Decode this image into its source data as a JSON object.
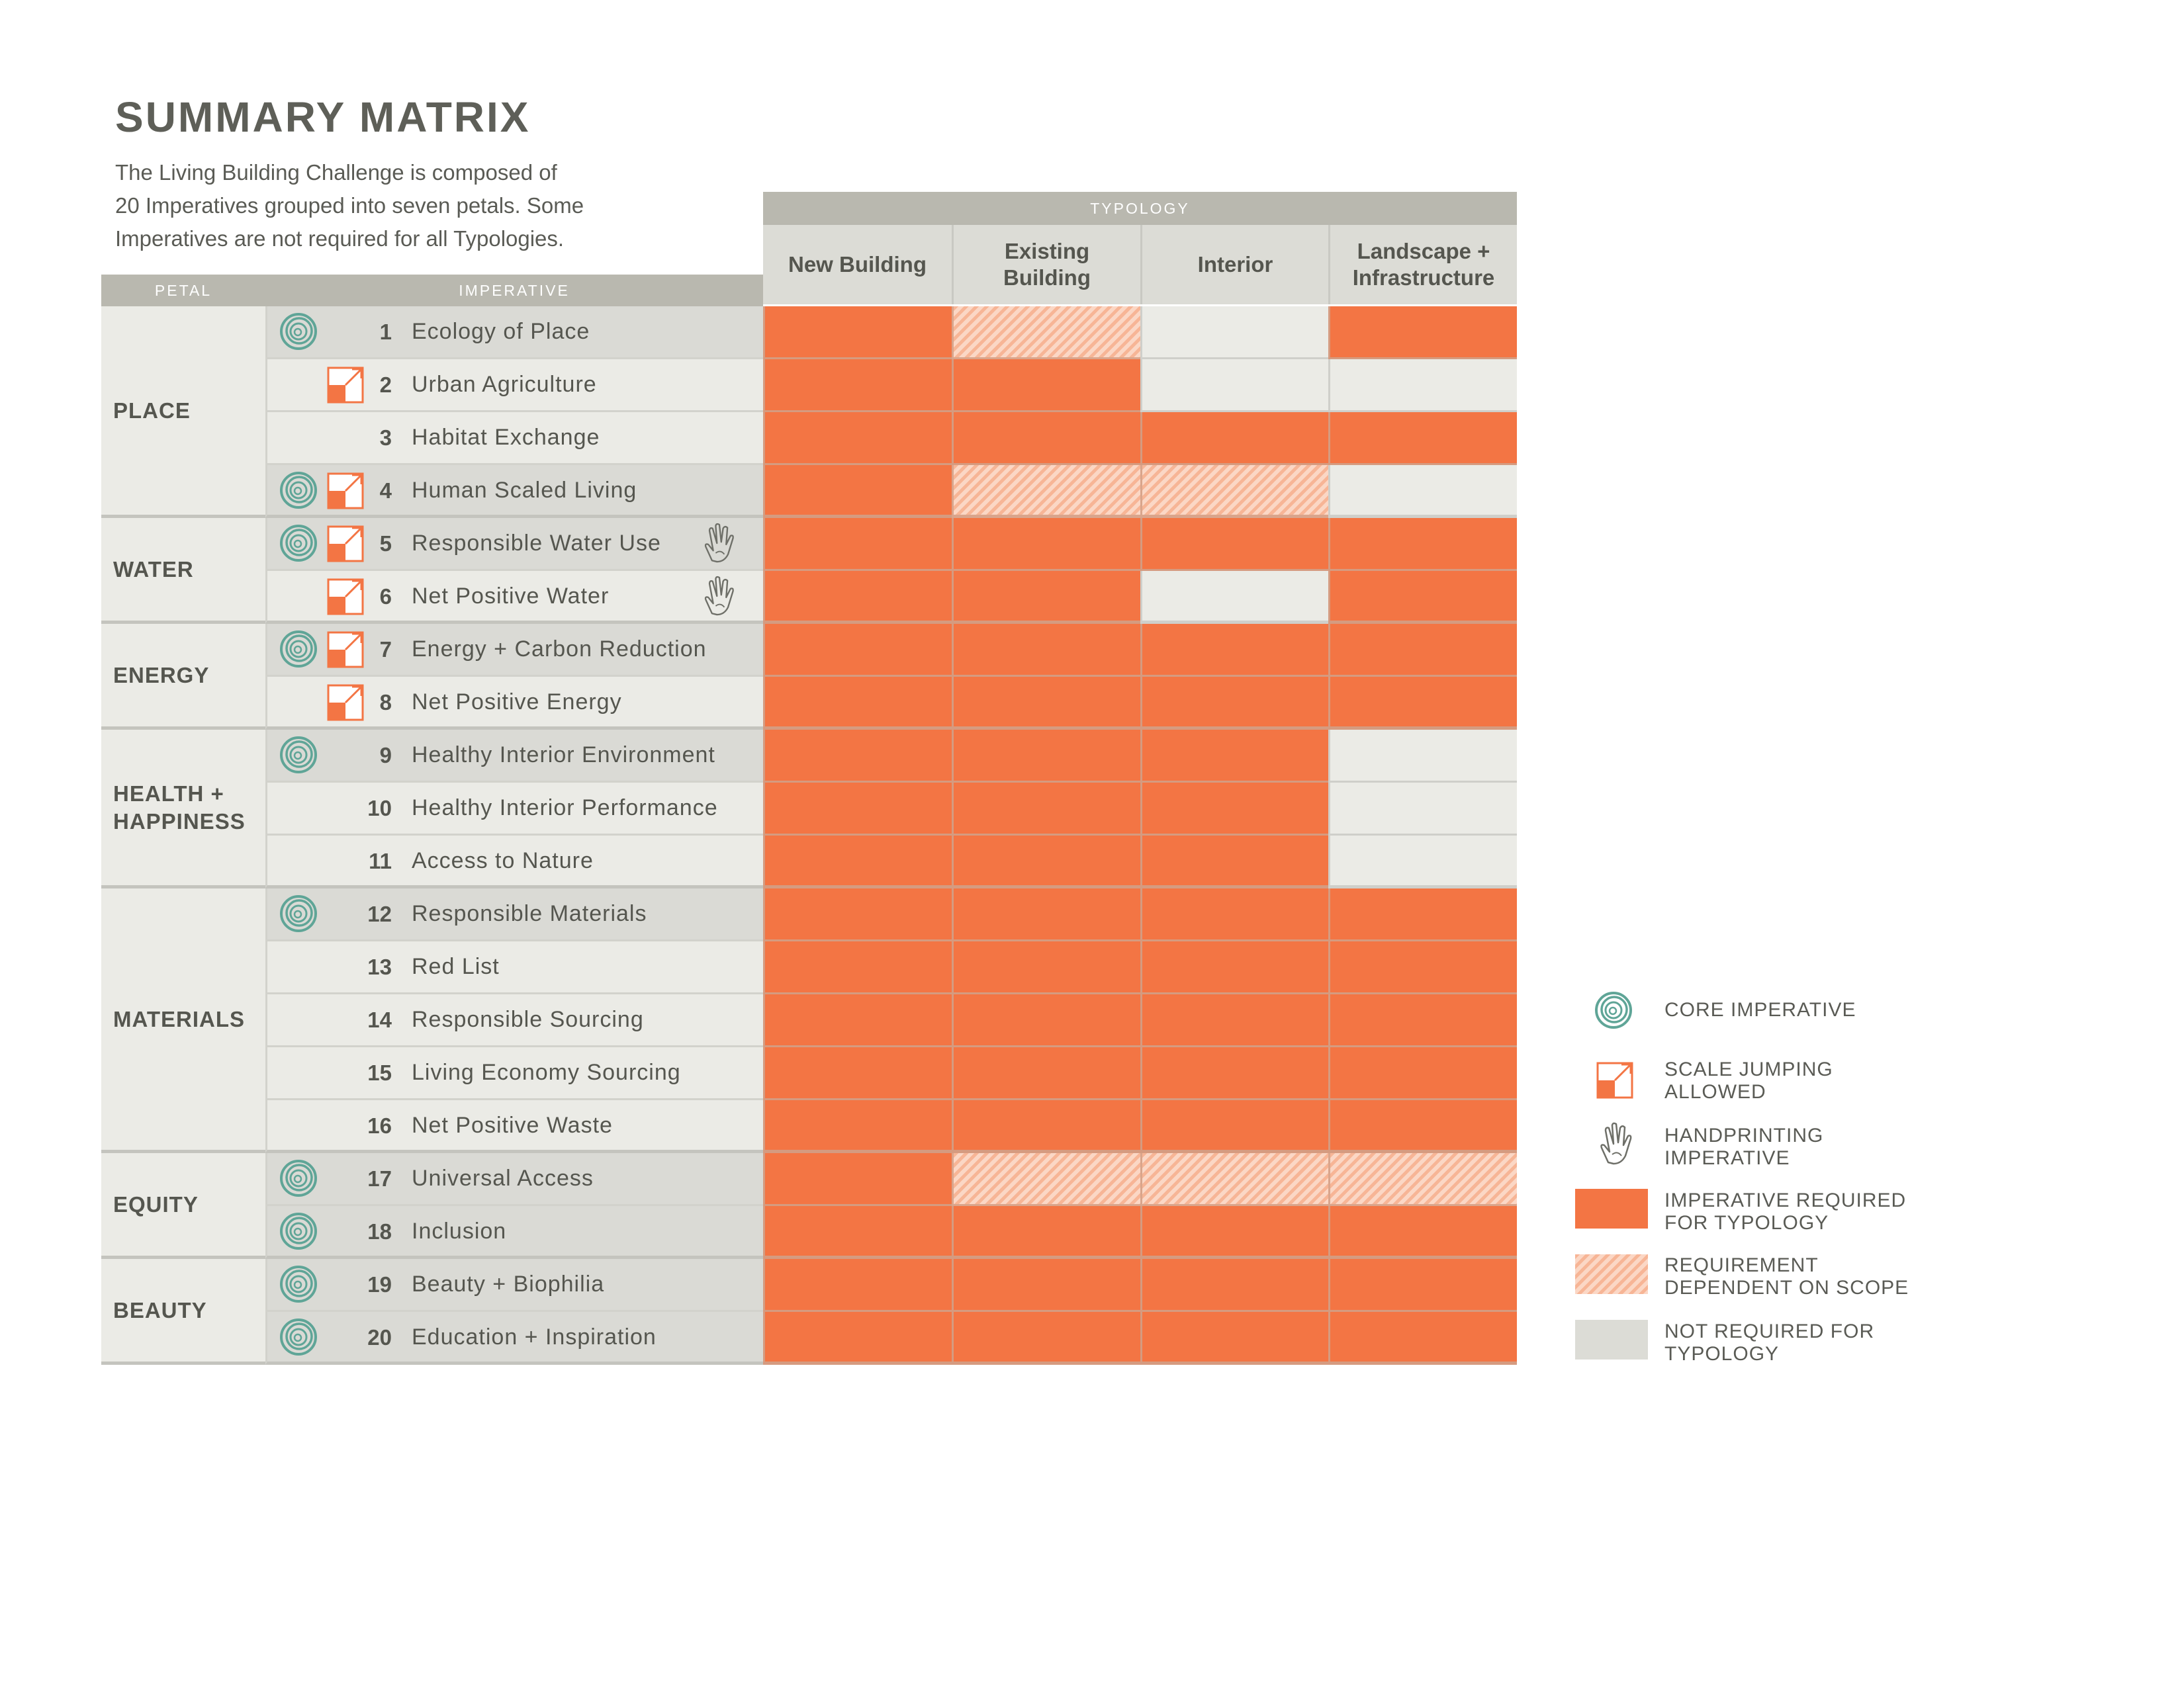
{
  "title": "SUMMARY MATRIX",
  "intro_lines": [
    "The Living Building Challenge is composed of",
    "20 Imperatives grouped into seven petals. Some",
    "Imperatives are not required for all Typologies."
  ],
  "headers": {
    "petal": "PETAL",
    "imperative": "IMPERATIVE",
    "typology": "TYPOLOGY",
    "typologies": [
      {
        "line1": "New Building",
        "line2": ""
      },
      {
        "line1": "Existing",
        "line2": "Building"
      },
      {
        "line1": "Interior",
        "line2": ""
      },
      {
        "line1": "Landscape +",
        "line2": "Infrastructure"
      }
    ]
  },
  "petals": [
    {
      "line1": "PLACE",
      "line2": ""
    },
    {
      "line1": "WATER",
      "line2": ""
    },
    {
      "line1": "ENERGY",
      "line2": ""
    },
    {
      "line1": "HEALTH +",
      "line2": "HAPPINESS"
    },
    {
      "line1": "MATERIALS",
      "line2": ""
    },
    {
      "line1": "EQUITY",
      "line2": ""
    },
    {
      "line1": "BEAUTY",
      "line2": ""
    }
  ],
  "imperatives": [
    {
      "num": "1",
      "name": "Ecology of Place",
      "core": true,
      "scale": false,
      "hand": false,
      "status": [
        "required",
        "scope",
        "none",
        "required"
      ]
    },
    {
      "num": "2",
      "name": "Urban Agriculture",
      "core": false,
      "scale": true,
      "hand": false,
      "status": [
        "required",
        "required",
        "none",
        "none"
      ]
    },
    {
      "num": "3",
      "name": "Habitat Exchange",
      "core": false,
      "scale": false,
      "hand": false,
      "status": [
        "required",
        "required",
        "required",
        "required"
      ]
    },
    {
      "num": "4",
      "name": "Human Scaled Living",
      "core": true,
      "scale": true,
      "hand": false,
      "status": [
        "required",
        "scope",
        "scope",
        "none"
      ]
    },
    {
      "num": "5",
      "name": "Responsible Water Use",
      "core": true,
      "scale": true,
      "hand": true,
      "status": [
        "required",
        "required",
        "required",
        "required"
      ]
    },
    {
      "num": "6",
      "name": "Net Positive Water",
      "core": false,
      "scale": true,
      "hand": true,
      "status": [
        "required",
        "required",
        "none",
        "required"
      ]
    },
    {
      "num": "7",
      "name": "Energy + Carbon Reduction",
      "core": true,
      "scale": true,
      "hand": false,
      "status": [
        "required",
        "required",
        "required",
        "required"
      ]
    },
    {
      "num": "8",
      "name": "Net Positive Energy",
      "core": false,
      "scale": true,
      "hand": false,
      "status": [
        "required",
        "required",
        "required",
        "required"
      ]
    },
    {
      "num": "9",
      "name": "Healthy Interior Environment",
      "core": true,
      "scale": false,
      "hand": false,
      "status": [
        "required",
        "required",
        "required",
        "none"
      ]
    },
    {
      "num": "10",
      "name": "Healthy Interior Performance",
      "core": false,
      "scale": false,
      "hand": false,
      "status": [
        "required",
        "required",
        "required",
        "none"
      ]
    },
    {
      "num": "11",
      "name": "Access to Nature",
      "core": false,
      "scale": false,
      "hand": false,
      "status": [
        "required",
        "required",
        "required",
        "none"
      ]
    },
    {
      "num": "12",
      "name": "Responsible Materials",
      "core": true,
      "scale": false,
      "hand": false,
      "status": [
        "required",
        "required",
        "required",
        "required"
      ]
    },
    {
      "num": "13",
      "name": "Red List",
      "core": false,
      "scale": false,
      "hand": false,
      "status": [
        "required",
        "required",
        "required",
        "required"
      ]
    },
    {
      "num": "14",
      "name": "Responsible Sourcing",
      "core": false,
      "scale": false,
      "hand": false,
      "status": [
        "required",
        "required",
        "required",
        "required"
      ]
    },
    {
      "num": "15",
      "name": "Living Economy Sourcing",
      "core": false,
      "scale": false,
      "hand": false,
      "status": [
        "required",
        "required",
        "required",
        "required"
      ]
    },
    {
      "num": "16",
      "name": "Net Positive Waste",
      "core": false,
      "scale": false,
      "hand": false,
      "status": [
        "required",
        "required",
        "required",
        "required"
      ]
    },
    {
      "num": "17",
      "name": "Universal Access",
      "core": true,
      "scale": false,
      "hand": false,
      "status": [
        "required",
        "scope",
        "scope",
        "scope"
      ]
    },
    {
      "num": "18",
      "name": "Inclusion",
      "core": true,
      "scale": false,
      "hand": false,
      "status": [
        "required",
        "required",
        "required",
        "required"
      ]
    },
    {
      "num": "19",
      "name": "Beauty + Biophilia",
      "core": true,
      "scale": false,
      "hand": false,
      "status": [
        "required",
        "required",
        "required",
        "required"
      ]
    },
    {
      "num": "20",
      "name": "Education + Inspiration",
      "core": true,
      "scale": false,
      "hand": false,
      "status": [
        "required",
        "required",
        "required",
        "required"
      ]
    }
  ],
  "legend": {
    "core": {
      "line1": "CORE IMPERATIVE",
      "line2": ""
    },
    "scale": {
      "line1": "SCALE JUMPING",
      "line2": "ALLOWED"
    },
    "hand": {
      "line1": "HANDPRINTING",
      "line2": "IMPERATIVE"
    },
    "required": {
      "line1": "IMPERATIVE REQUIRED",
      "line2": "FOR TYPOLOGY"
    },
    "scope": {
      "line1": "REQUIREMENT",
      "line2": "DEPENDENT ON SCOPE"
    },
    "none": {
      "line1": "NOT REQUIRED FOR",
      "line2": "TYPOLOGY"
    }
  },
  "colors": {
    "required": "#f37544",
    "scope_a": "#f7b596",
    "scope_b": "#fbd7c5",
    "not_required": "#ebebe6",
    "header": "#b9b8af",
    "core_icon": "#5fa597",
    "text": "#55564f"
  },
  "icons": {
    "core": "spiral-icon",
    "scale": "scale-jumping-icon",
    "hand": "handprint-icon"
  }
}
